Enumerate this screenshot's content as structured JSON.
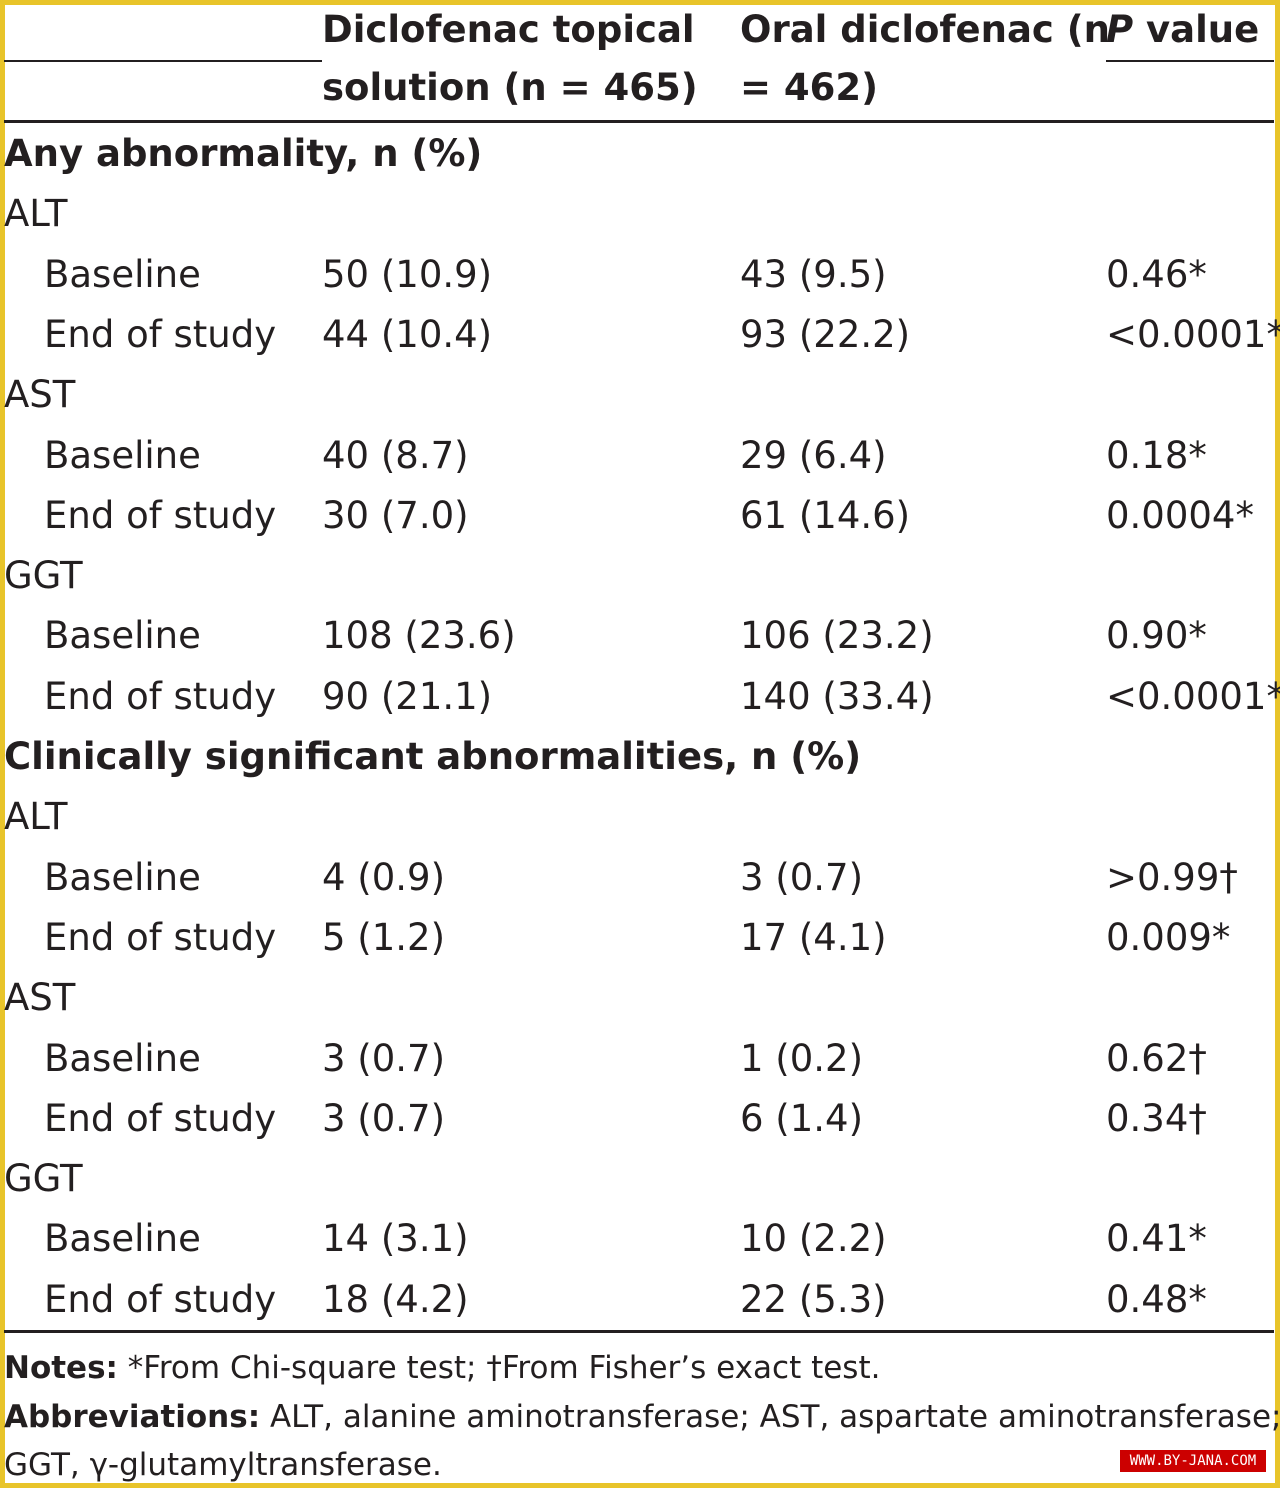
{
  "table": {
    "headers": {
      "col1_line1": "Diclofenac topical",
      "col1_line2": "solution (n = 465)",
      "col2_line1": "Oral diclofenac (n",
      "col2_line2": "= 462)",
      "col3_italic": "P",
      "col3_rest": " value"
    },
    "rows": [
      {
        "type": "section",
        "label": "Any abnormality, n (%)"
      },
      {
        "type": "group",
        "label": "ALT"
      },
      {
        "type": "data",
        "label": "Baseline",
        "topical": "50 (10.9)",
        "oral": "43 (9.5)",
        "p": "0.46*"
      },
      {
        "type": "data",
        "label": "End of study",
        "topical": "44 (10.4)",
        "oral": "93 (22.2)",
        "p": "<0.0001*"
      },
      {
        "type": "group",
        "label": "AST"
      },
      {
        "type": "data",
        "label": "Baseline",
        "topical": "40 (8.7)",
        "oral": "29 (6.4)",
        "p": "0.18*"
      },
      {
        "type": "data",
        "label": "End of study",
        "topical": "30 (7.0)",
        "oral": "61 (14.6)",
        "p": "0.0004*"
      },
      {
        "type": "group",
        "label": "GGT"
      },
      {
        "type": "data",
        "label": "Baseline",
        "topical": "108 (23.6)",
        "oral": "106 (23.2)",
        "p": "0.90*"
      },
      {
        "type": "data",
        "label": "End of study",
        "topical": "90 (21.1)",
        "oral": "140 (33.4)",
        "p": "<0.0001*"
      },
      {
        "type": "section",
        "label": "Clinically significant abnormalities, n (%)"
      },
      {
        "type": "group",
        "label": "ALT"
      },
      {
        "type": "data",
        "label": "Baseline",
        "topical": "4 (0.9)",
        "oral": "3 (0.7)",
        "p": ">0.99†"
      },
      {
        "type": "data",
        "label": "End of study",
        "topical": "5 (1.2)",
        "oral": "17 (4.1)",
        "p": "0.009*"
      },
      {
        "type": "group",
        "label": "AST"
      },
      {
        "type": "data",
        "label": "Baseline",
        "topical": "3 (0.7)",
        "oral": "1 (0.2)",
        "p": "0.62†"
      },
      {
        "type": "data",
        "label": "End of study",
        "topical": "3 (0.7)",
        "oral": "6 (1.4)",
        "p": "0.34†"
      },
      {
        "type": "group",
        "label": "GGT"
      },
      {
        "type": "data",
        "label": "Baseline",
        "topical": "14 (3.1)",
        "oral": "10 (2.2)",
        "p": "0.41*"
      },
      {
        "type": "data",
        "label": "End of study",
        "topical": "18 (4.2)",
        "oral": "22 (5.3)",
        "p": "0.48*"
      }
    ]
  },
  "notes": {
    "notes_label": "Notes:",
    "notes_text": " *From Chi-square test; †From Fisher’s exact test.",
    "abbr_label": "Abbreviations:",
    "abbr_text_line1": " ALT, alanine aminotransferase; AST, aspartate aminotransferase;",
    "abbr_text_line2": "GGT, γ-glutamyltransferase."
  },
  "watermark": "WWW.BY-JANA.COM",
  "colors": {
    "border": "#e8c42a",
    "text": "#231f20",
    "watermark_bg": "#cc0000"
  }
}
